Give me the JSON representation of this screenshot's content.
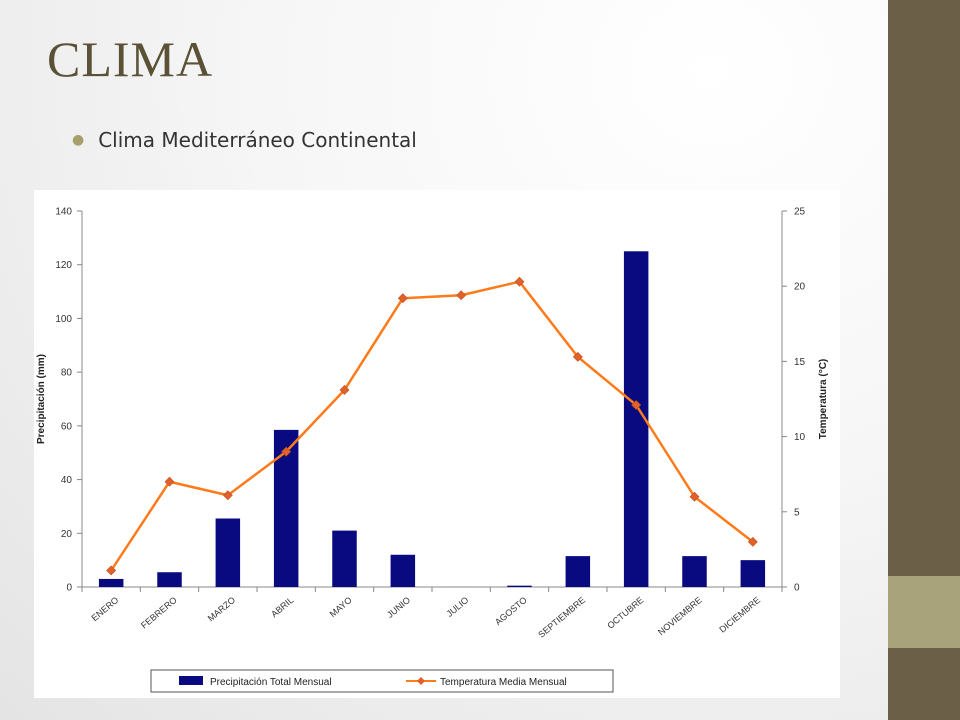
{
  "slide": {
    "title": "CLIMA",
    "bullet": "Clima Mediterráneo Continental",
    "colors": {
      "sidebar": "#6b5f47",
      "stripe": "#a9a37c",
      "title": "#5b5137"
    }
  },
  "chart_data": {
    "type": "bar+line",
    "categories": [
      "ENERO",
      "FEBRERO",
      "MARZO",
      "ABRIL",
      "MAYO",
      "JUNIO",
      "JULIO",
      "AGOSTO",
      "SEPTIEMBRE",
      "OCTUBRE",
      "NOVIEMBRE",
      "DICIEMBRE"
    ],
    "series": [
      {
        "name": "Precipitación Total Mensual",
        "type": "bar",
        "axis": "left",
        "color": "#0a0a80",
        "values": [
          3,
          5.5,
          25.5,
          58.5,
          21,
          12,
          0,
          0.5,
          11.5,
          125,
          11.5,
          10
        ]
      },
      {
        "name": "Temperatura Media Mensual",
        "type": "line",
        "axis": "right",
        "color": "#ff7a1a",
        "marker_color": "#e0622a",
        "values": [
          1.1,
          7,
          6.1,
          9,
          13.1,
          19.2,
          19.4,
          20.3,
          15.3,
          12.1,
          6,
          3
        ]
      }
    ],
    "y_left": {
      "label": "Precipitación (mm)",
      "ylim": [
        0,
        140
      ],
      "ticks": [
        0,
        20,
        40,
        60,
        80,
        100,
        120,
        140
      ]
    },
    "y_right": {
      "label": "Temperatura (°C)",
      "ylim": [
        0,
        25
      ],
      "ticks": [
        0,
        5,
        10,
        15,
        20,
        25
      ]
    },
    "legend": {
      "placement": "bottom"
    },
    "grid": false
  }
}
